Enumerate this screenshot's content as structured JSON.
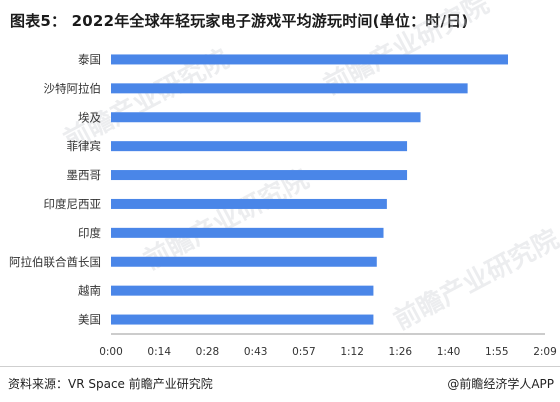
{
  "title": "图表5： 2022年全球年轻玩家电子游戏平均游玩时间(单位：时/日)",
  "footer": {
    "source": "资料来源：VR Space 前瞻产业研究院",
    "brand": "@前瞻经济学人APP"
  },
  "watermark": "前瞻产业研究院",
  "colors": {
    "bar": "#4a86e8",
    "axis": "#9a9a9a",
    "label": "#333333"
  },
  "chart_data": {
    "type": "bar",
    "orientation": "horizontal",
    "title": "图表5： 2022年全球年轻玩家电子游戏平均游玩时间(单位：时/日)",
    "categories": [
      "泰国",
      "沙特阿拉伯",
      "埃及",
      "菲律宾",
      "墨西哥",
      "印度尼西亚",
      "印度",
      "阿拉伯联合酋长国",
      "越南",
      "美国"
    ],
    "values_minutes": [
      118,
      106,
      92,
      88,
      88,
      82,
      81,
      79,
      78,
      78
    ],
    "xticks": [
      "0:00",
      "0:14",
      "0:28",
      "0:43",
      "0:57",
      "1:12",
      "1:26",
      "1:40",
      "1:55",
      "2:09"
    ],
    "xlim_minutes": [
      0,
      129
    ],
    "grid": false,
    "legend": "none"
  }
}
